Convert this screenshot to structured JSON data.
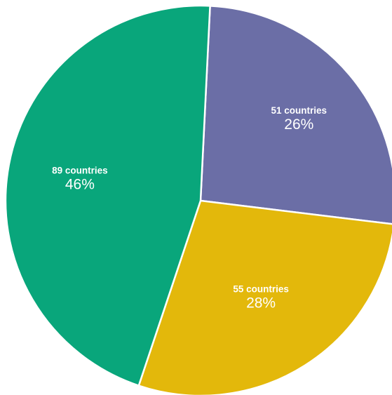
{
  "chart_data": {
    "type": "pie",
    "title": "",
    "legend": "none",
    "slices": [
      {
        "count_label": "51 countries",
        "value": 51,
        "percent_label": "26%",
        "color": "#6b6ea6"
      },
      {
        "count_label": "55 countries",
        "value": 55,
        "percent_label": "28%",
        "color": "#e3b80b"
      },
      {
        "count_label": "89 countries",
        "value": 89,
        "percent_label": "46%",
        "color": "#09a67b"
      }
    ]
  }
}
